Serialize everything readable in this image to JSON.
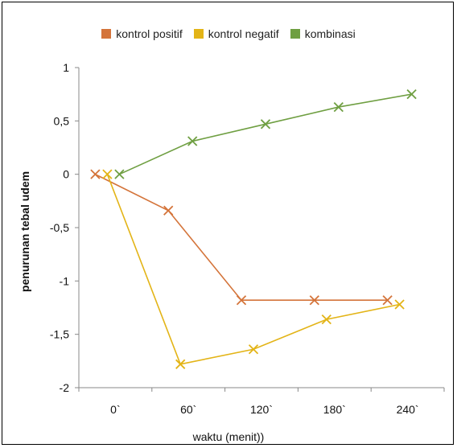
{
  "chart_data": {
    "type": "line",
    "title": "",
    "xlabel": "waktu (menit))",
    "ylabel": "penurunan tebal udem",
    "categories": [
      "0`",
      "60`",
      "120`",
      "180`",
      "240`"
    ],
    "ylim": [
      -2,
      1
    ],
    "yticks": [
      1,
      0.5,
      0,
      -0.5,
      -1,
      -1.5,
      -2
    ],
    "ytick_labels": [
      "1",
      "0,5",
      "0",
      "-0,5",
      "-1",
      "-1,5",
      "-2"
    ],
    "grid": false,
    "legend_position": "top",
    "series": [
      {
        "name": "kontrol positif",
        "color": "#d4743a",
        "x": [
          0,
          60,
          120,
          180,
          240
        ],
        "values": [
          0,
          -0.34,
          -1.18,
          -1.18,
          -1.18
        ]
      },
      {
        "name": "kontrol negatif",
        "color": "#e3b417",
        "x": [
          0,
          60,
          120,
          180,
          240
        ],
        "values": [
          0,
          -1.78,
          -1.64,
          -1.36,
          -1.22
        ]
      },
      {
        "name": "kombinasi",
        "color": "#6f9f42",
        "x": [
          0,
          60,
          120,
          180,
          240
        ],
        "values": [
          0,
          0.31,
          0.47,
          0.63,
          0.75
        ]
      }
    ]
  }
}
